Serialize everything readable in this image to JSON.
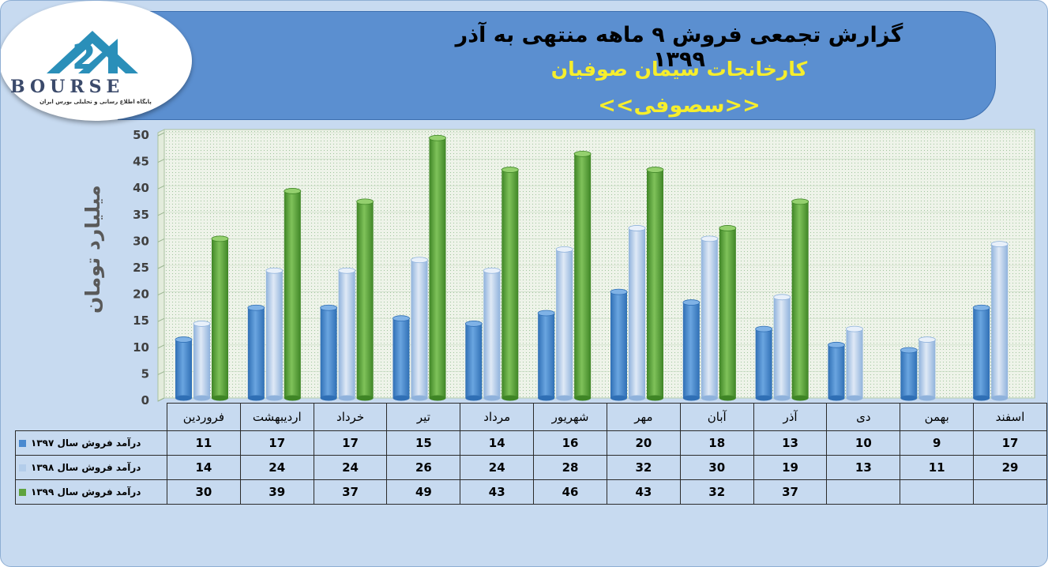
{
  "header": {
    "title_line1": "گزارش تجمعی فروش ۹ ماهه منتهی به آذر ۱۳۹۹",
    "title_line2": "کارخانجات سیمان صوفیان",
    "title_line3": "<<سصوفی>>"
  },
  "logo": {
    "word": "BOURSE",
    "subtitle": "پایگاه اطلاع رسانی و تحلیلی بورس ایران"
  },
  "colors": {
    "series_1397": "#4a8ad0",
    "series_1398": "#b3cdea",
    "series_1399": "#5fa33e",
    "header_bg": "#5b8fd0",
    "title_accent": "#f6ee2c"
  },
  "chart_data": {
    "type": "bar",
    "ylabel": "میلیارد تومان",
    "ylim": [
      0,
      50
    ],
    "yticks": [
      0,
      5,
      10,
      15,
      20,
      25,
      30,
      35,
      40,
      45,
      50
    ],
    "categories": [
      "فروردین",
      "اردیبهشت",
      "خرداد",
      "تیر",
      "مرداد",
      "شهریور",
      "مهر",
      "آبان",
      "آذر",
      "دی",
      "بهمن",
      "اسفند"
    ],
    "series": [
      {
        "name": "درآمد فروش سال ۱۳۹۷",
        "values": [
          11,
          17,
          17,
          15,
          14,
          16,
          20,
          18,
          13,
          10,
          9,
          17
        ]
      },
      {
        "name": "درآمد فروش سال ۱۳۹۸",
        "values": [
          14,
          24,
          24,
          26,
          24,
          28,
          32,
          30,
          19,
          13,
          11,
          29
        ]
      },
      {
        "name": "درآمد فروش سال ۱۳۹۹",
        "values": [
          30,
          39,
          37,
          49,
          43,
          46,
          43,
          32,
          37,
          null,
          null,
          null
        ]
      }
    ],
    "grid": true,
    "legend": "table"
  }
}
